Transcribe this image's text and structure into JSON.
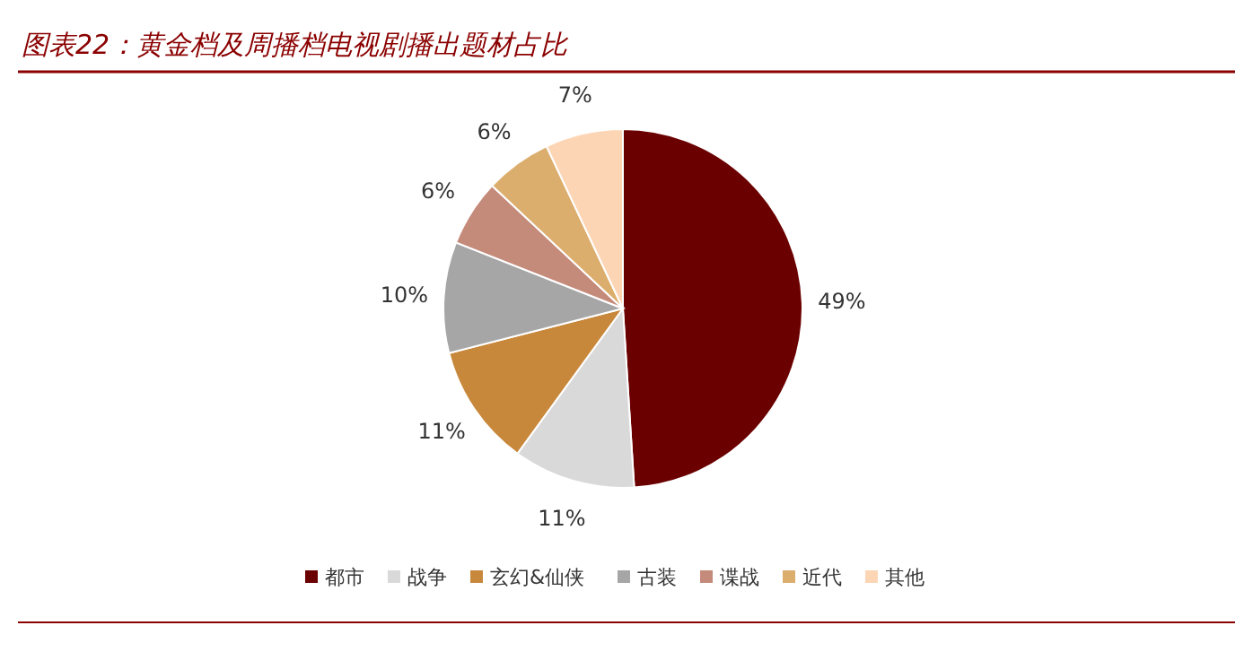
{
  "chart_data": {
    "type": "pie",
    "title": "图表22：黄金档及周播档电视剧播出题材占比",
    "categories": [
      "都市",
      "战争",
      "玄幻&仙侠",
      "古装",
      "谍战",
      "近代",
      "其他"
    ],
    "values": [
      49,
      11,
      11,
      10,
      6,
      6,
      7
    ],
    "colors": [
      "#6b0000",
      "#d9d9d9",
      "#c8883c",
      "#a6a6a6",
      "#c48a7a",
      "#dcae6e",
      "#fcd5b5"
    ],
    "value_labels": [
      "49%",
      "11%",
      "11%",
      "10%",
      "6%",
      "6%",
      "7%"
    ],
    "legend": "bottom"
  }
}
